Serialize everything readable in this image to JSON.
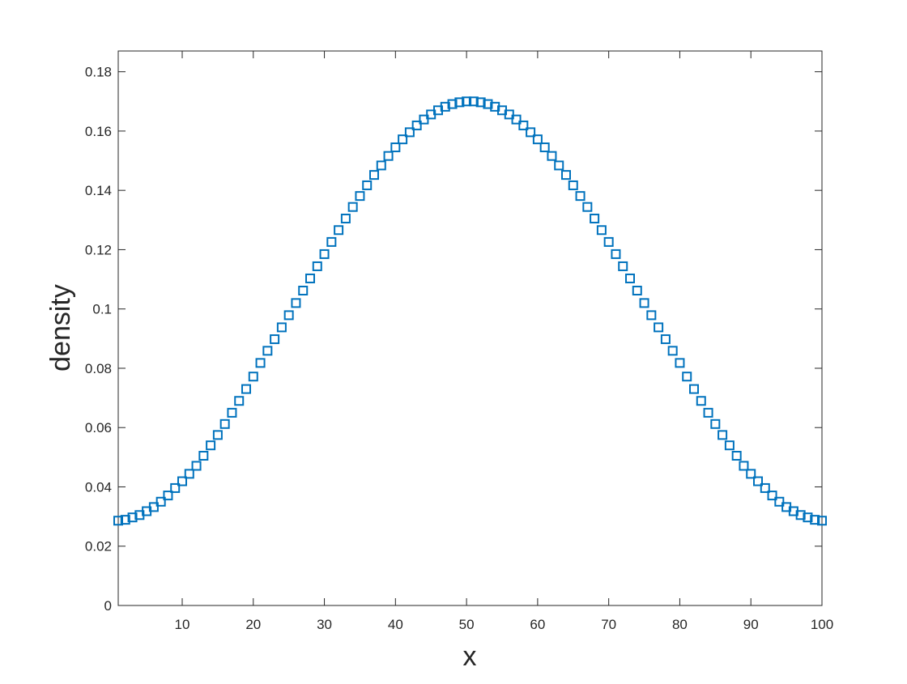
{
  "chart_data": {
    "type": "scatter",
    "title": "",
    "xlabel": "x",
    "ylabel": "density",
    "xlim": [
      1,
      100
    ],
    "ylim": [
      0,
      0.187
    ],
    "xticks": [
      10,
      20,
      30,
      40,
      50,
      60,
      70,
      80,
      90,
      100
    ],
    "xtick_labels": [
      "10",
      "20",
      "30",
      "40",
      "50",
      "60",
      "70",
      "80",
      "90",
      "100"
    ],
    "yticks": [
      0,
      0.02,
      0.04,
      0.06,
      0.08,
      0.1,
      0.12,
      0.14,
      0.16,
      0.18
    ],
    "ytick_labels": [
      "0",
      "0.02",
      "0.04",
      "0.06",
      "0.08",
      "0.1",
      "0.12",
      "0.14",
      "0.16",
      "0.18"
    ],
    "grid": false,
    "marker": "square",
    "marker_color": "#0072BD",
    "x": [
      1,
      2,
      3,
      4,
      5,
      6,
      7,
      8,
      9,
      10,
      11,
      12,
      13,
      14,
      15,
      16,
      17,
      18,
      19,
      20,
      21,
      22,
      23,
      24,
      25,
      26,
      27,
      28,
      29,
      30,
      31,
      32,
      33,
      34,
      35,
      36,
      37,
      38,
      39,
      40,
      41,
      42,
      43,
      44,
      45,
      46,
      47,
      48,
      49,
      50,
      51,
      52,
      53,
      54,
      55,
      56,
      57,
      58,
      59,
      60,
      61,
      62,
      63,
      64,
      65,
      66,
      67,
      68,
      69,
      70,
      71,
      72,
      73,
      74,
      75,
      76,
      77,
      78,
      79,
      80,
      81,
      82,
      83,
      84,
      85,
      86,
      87,
      88,
      89,
      90,
      91,
      92,
      93,
      94,
      95,
      96,
      97,
      98,
      99,
      100
    ],
    "y": [
      0.0286,
      0.0289,
      0.0297,
      0.0305,
      0.0318,
      0.0332,
      0.035,
      0.0371,
      0.0396,
      0.0419,
      0.0444,
      0.0471,
      0.0505,
      0.054,
      0.0575,
      0.0612,
      0.065,
      0.069,
      0.073,
      0.0772,
      0.0818,
      0.0859,
      0.0898,
      0.0938,
      0.0979,
      0.102,
      0.1062,
      0.1103,
      0.1144,
      0.1185,
      0.1226,
      0.1266,
      0.1305,
      0.1344,
      0.1381,
      0.1417,
      0.1452,
      0.1484,
      0.1516,
      0.1545,
      0.1572,
      0.1596,
      0.1619,
      0.1639,
      0.1656,
      0.167,
      0.1682,
      0.1691,
      0.1697,
      0.17,
      0.17,
      0.1697,
      0.1691,
      0.1682,
      0.167,
      0.1656,
      0.1639,
      0.1619,
      0.1596,
      0.1572,
      0.1545,
      0.1516,
      0.1484,
      0.1452,
      0.1417,
      0.1381,
      0.1344,
      0.1305,
      0.1266,
      0.1226,
      0.1185,
      0.1144,
      0.1103,
      0.1062,
      0.102,
      0.0979,
      0.0938,
      0.0898,
      0.0859,
      0.0818,
      0.0772,
      0.073,
      0.069,
      0.065,
      0.0612,
      0.0575,
      0.054,
      0.0505,
      0.0471,
      0.0444,
      0.0419,
      0.0396,
      0.0371,
      0.035,
      0.0332,
      0.0318,
      0.0305,
      0.0297,
      0.0289,
      0.0286
    ]
  }
}
